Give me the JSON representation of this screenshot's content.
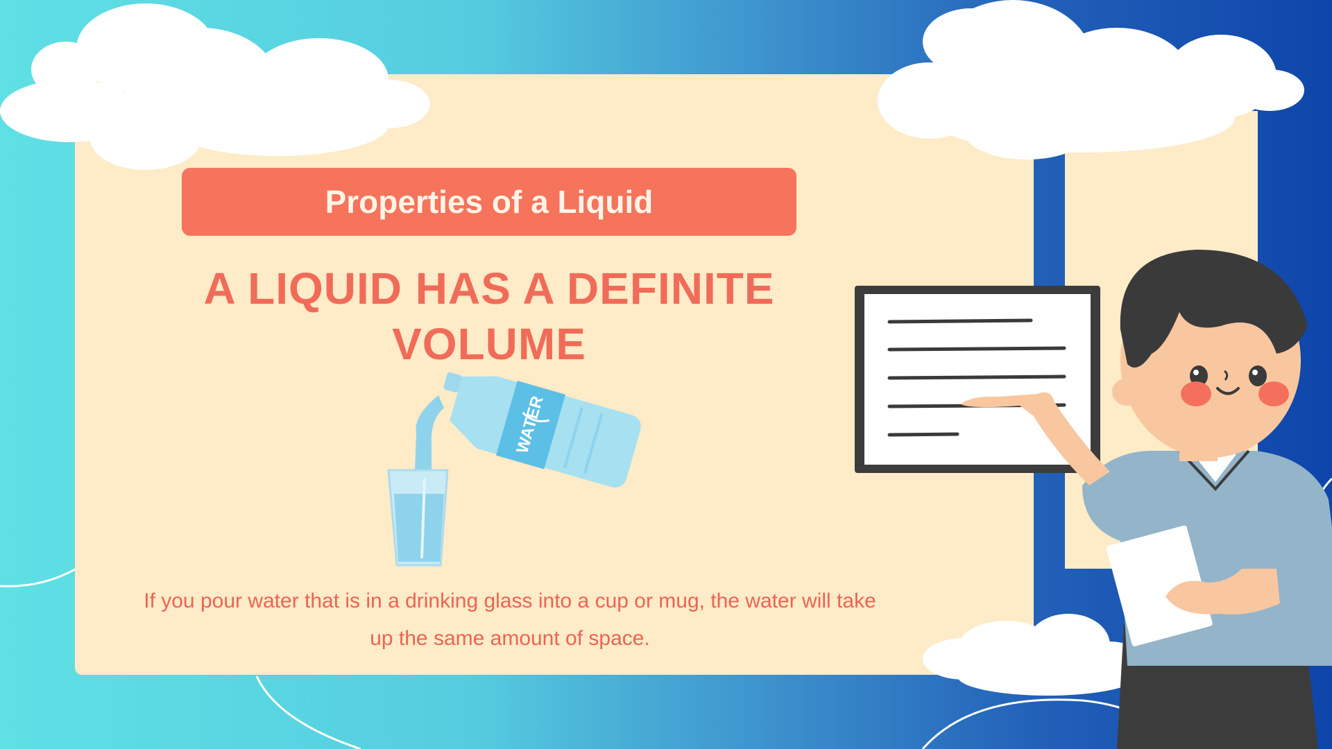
{
  "slide": {
    "tag": "Properties of a Liquid",
    "headline": "A LIQUID HAS A DEFINITE VOLUME",
    "description": "If you pour water that is in a drinking glass into a cup or mug, the water will take up the same amount of space.",
    "bottle_label": "WATER"
  },
  "colors": {
    "accent": "#f6735c",
    "headline": "#f06c59",
    "panel": "#feebc8",
    "sky_left": "#5fe0e4",
    "sky_right": "#0e45aa"
  },
  "icons": [
    "cloud-icon",
    "water-bottle-icon",
    "drinking-glass-icon",
    "whiteboard-icon",
    "teacher-character-icon"
  ]
}
